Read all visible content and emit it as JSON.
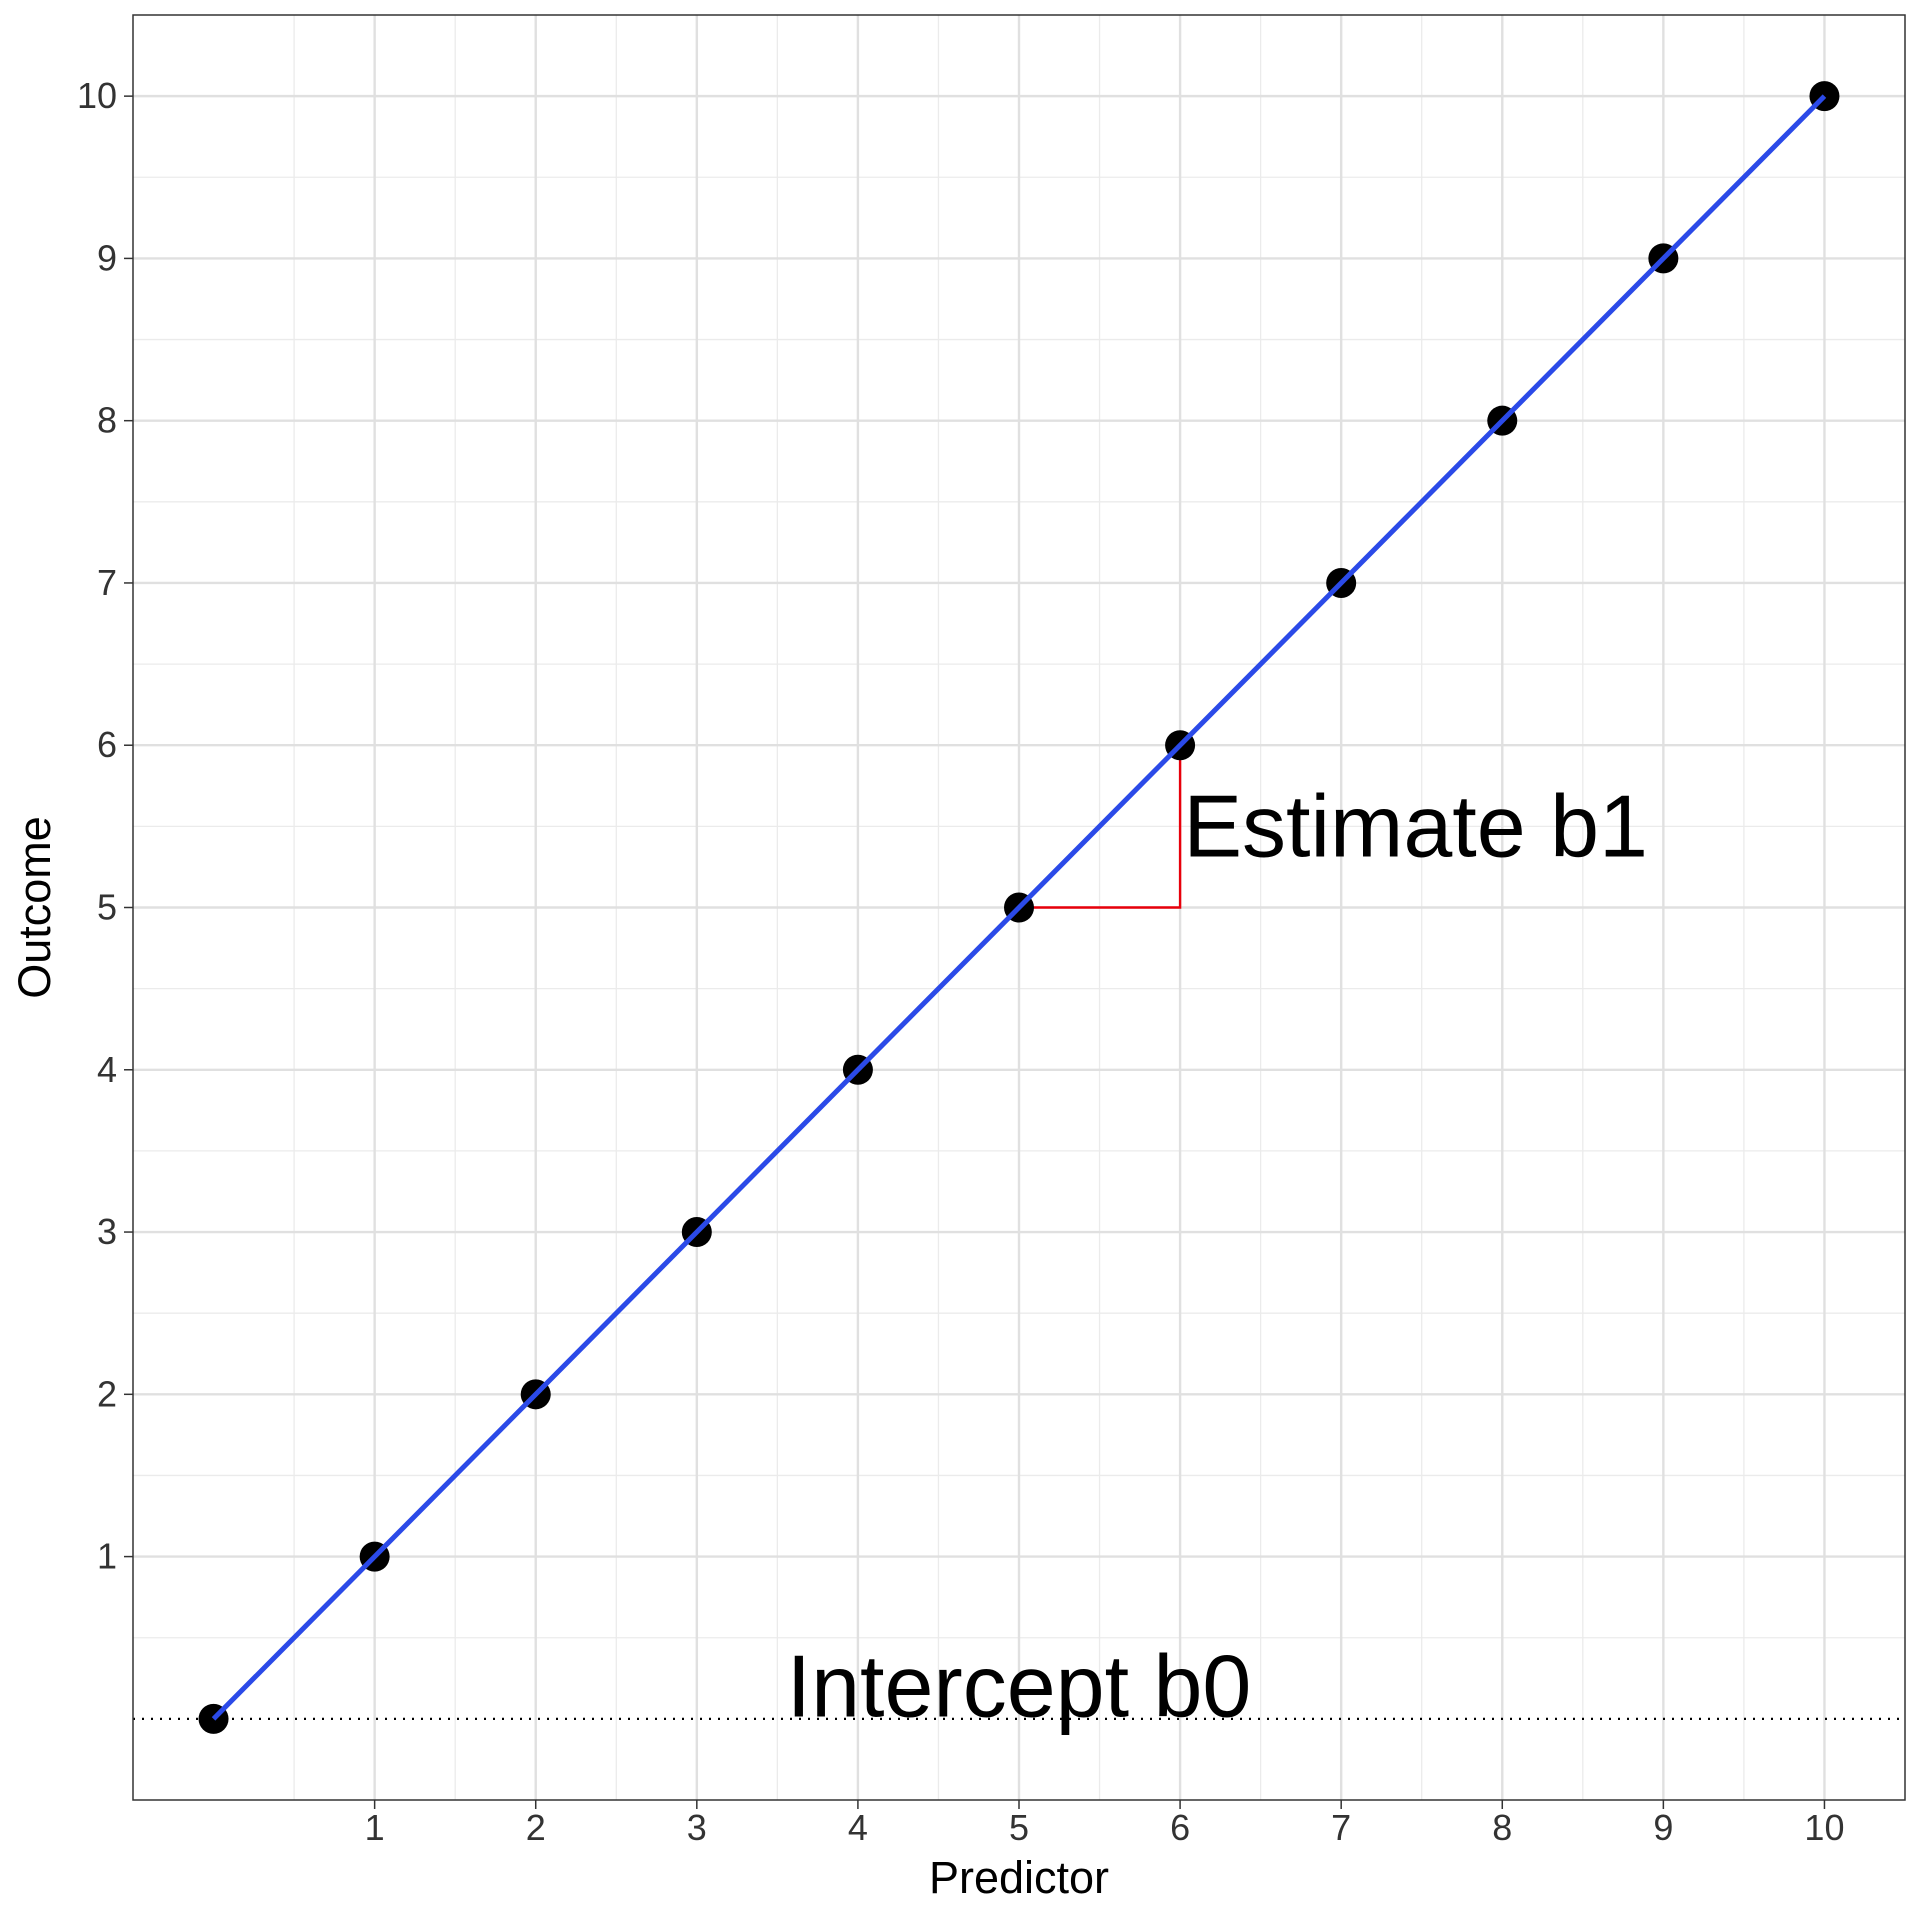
{
  "chart_data": {
    "type": "scatter",
    "x_label": "Predictor",
    "y_label": "Outcome",
    "x": [
      0,
      1,
      2,
      3,
      4,
      5,
      6,
      7,
      8,
      9,
      10
    ],
    "values": [
      0,
      1,
      2,
      3,
      4,
      5,
      6,
      7,
      8,
      9,
      10
    ],
    "color": "#000000",
    "fit_line": {
      "x": [
        0,
        10
      ],
      "y": [
        0,
        10
      ],
      "color": "#2b4ae8"
    },
    "slope_triangle": {
      "x": [
        5,
        6,
        6
      ],
      "y": [
        5,
        5,
        6
      ],
      "color": "#e8000b"
    },
    "hline": 0,
    "annotations": [
      {
        "text": "Estimate b1",
        "x": 6.02,
        "y": 5.5,
        "anchor": "start"
      },
      {
        "text": "Intercept b0",
        "x": 5,
        "y": 0.2,
        "anchor": "middle"
      }
    ],
    "xlim": [
      -0.5,
      10.5
    ],
    "ylim": [
      -0.5,
      10.5
    ],
    "xticks": [
      1,
      2,
      3,
      4,
      5,
      6,
      7,
      8,
      9,
      10
    ],
    "yticks": [
      1,
      2,
      3,
      4,
      5,
      6,
      7,
      8,
      9,
      10
    ],
    "grid": true,
    "minor_grid": true
  }
}
